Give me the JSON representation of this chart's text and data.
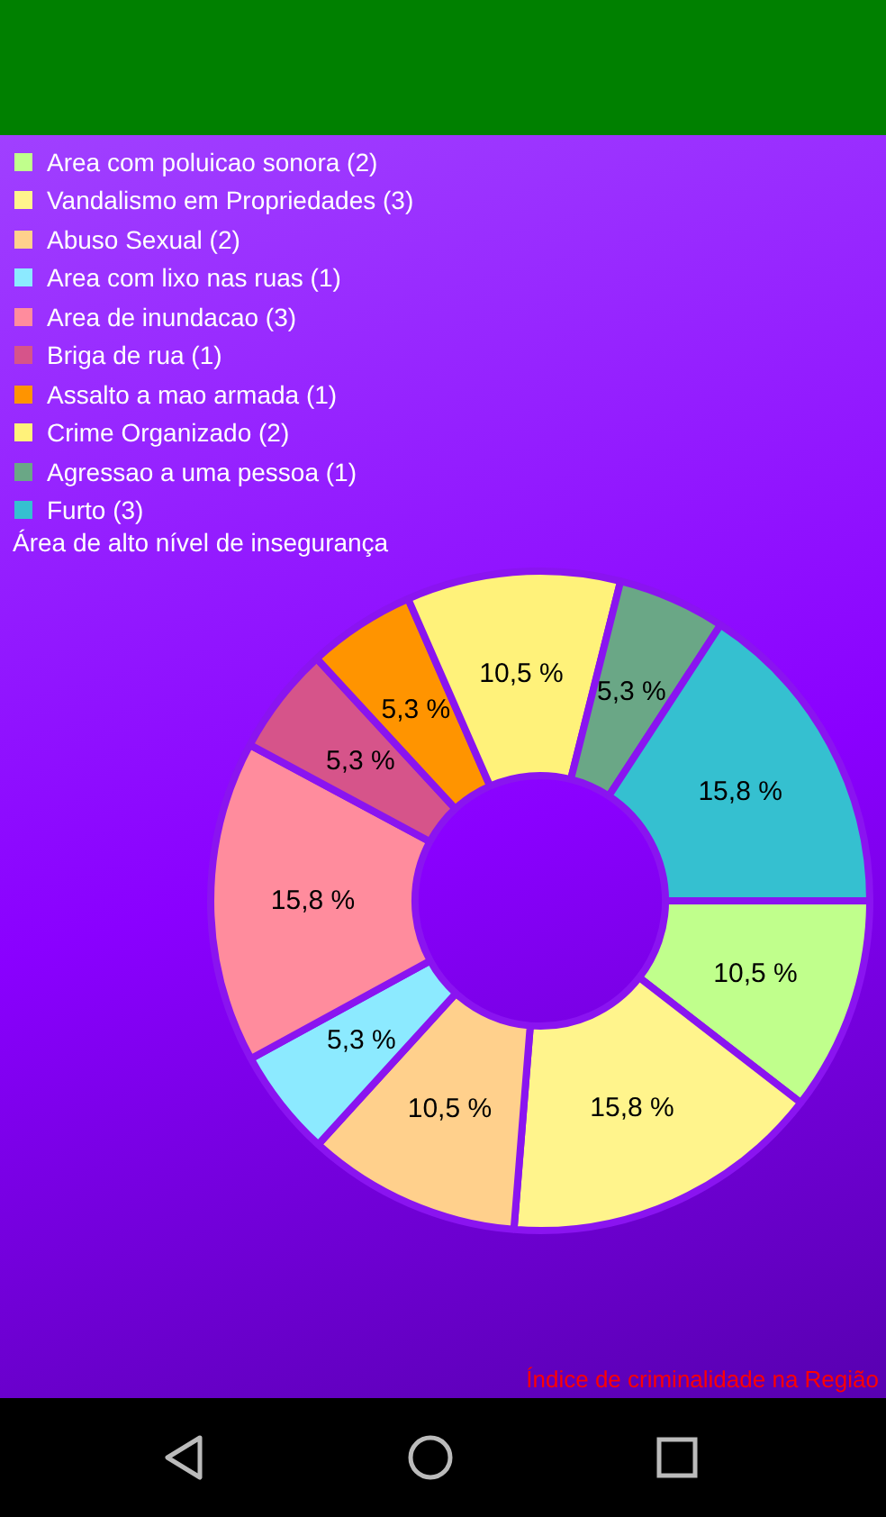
{
  "chart_data": {
    "type": "donut",
    "title": "Área de alto nível de insegurança",
    "categories": [
      "Area com poluicao sonora (2)",
      "Vandalismo em Propriedades (3)",
      "Abuso Sexual (2)",
      "Area com lixo nas ruas (1)",
      "Area de inundacao (3)",
      "Briga de rua (1)",
      "Assalto a mao armada (1)",
      "Crime Organizado (2)",
      "Agressao a uma pessoa (1)",
      "Furto (3)"
    ],
    "values": [
      10.5,
      15.8,
      10.5,
      5.3,
      15.8,
      5.3,
      5.3,
      10.5,
      5.3,
      15.8
    ],
    "value_labels": [
      "10,5 %",
      "15,8 %",
      "10,5 %",
      "5,3 %",
      "15,8 %",
      "5,3 %",
      "5,3 %",
      "10,5 %",
      "5,3 %",
      "15,8 %"
    ],
    "colors": [
      "#c0ff8c",
      "#fff48c",
      "#ffd08c",
      "#8ceaff",
      "#ff8c9d",
      "#d6548a",
      "#ff9400",
      "#fff27a",
      "#6aa786",
      "#35c0d0"
    ],
    "legend": "top left",
    "annotations": [
      "Índice de criminalidade na Região"
    ]
  }
}
